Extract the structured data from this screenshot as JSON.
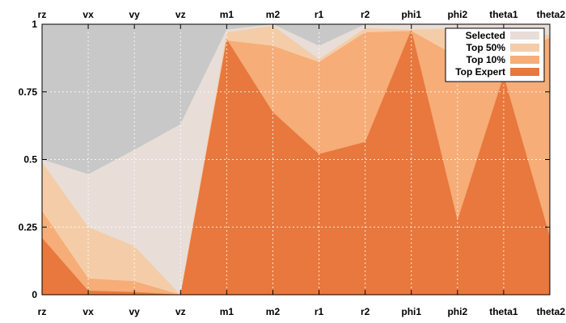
{
  "chart_data": {
    "type": "area",
    "categories": [
      "rz",
      "vx",
      "vy",
      "vz",
      "m1",
      "m2",
      "r1",
      "r2",
      "phi1",
      "phi2",
      "theta1",
      "theta2"
    ],
    "ylim": [
      0,
      1
    ],
    "yticks": [
      "0",
      "0.25",
      "0.5",
      "0.75",
      "1"
    ],
    "grid": true,
    "legend_position": "top-right",
    "background_region": {
      "upper_values": [
        1,
        1,
        1,
        1,
        1,
        1,
        1,
        1,
        1,
        1,
        1,
        1
      ],
      "lower_values": [
        0.5,
        0.445,
        0.535,
        0.63,
        0.98,
        0.98,
        0.92,
        0.985,
        0.985,
        0.98,
        0.985,
        0.985
      ],
      "color": "#c8c8c8"
    },
    "series": [
      {
        "name": "Selected",
        "values": [
          0.5,
          0.445,
          0.535,
          0.63,
          0.98,
          1.0,
          0.92,
          1.0,
          1.0,
          1.0,
          1.0,
          1.0
        ],
        "color": "#e8ddd7"
      },
      {
        "name": "Top 50%",
        "values": [
          0.49,
          0.25,
          0.18,
          0.0,
          0.97,
          0.995,
          0.87,
          0.985,
          0.98,
          0.985,
          0.975,
          0.96
        ],
        "color": "#f4cda8"
      },
      {
        "name": "Top 10%",
        "values": [
          0.31,
          0.06,
          0.05,
          0.0,
          0.94,
          0.92,
          0.86,
          0.97,
          0.975,
          0.88,
          0.86,
          0.95
        ],
        "color": "#f6ad77"
      },
      {
        "name": "Top Expert",
        "values": [
          0.21,
          0.015,
          0.01,
          0.0,
          0.945,
          0.675,
          0.52,
          0.565,
          0.98,
          0.275,
          0.81,
          0.215
        ],
        "color": "#e8783d"
      }
    ]
  }
}
